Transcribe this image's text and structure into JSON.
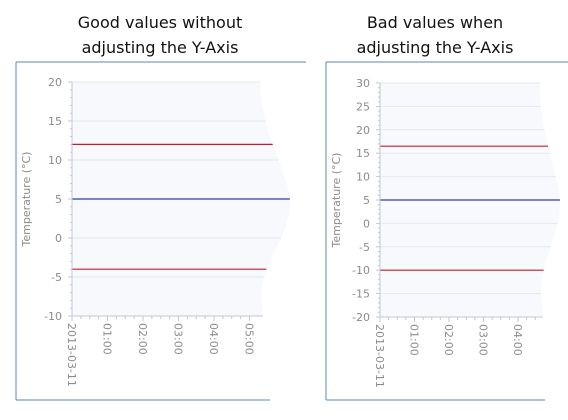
{
  "captions": {
    "left": [
      "Good values without",
      "adjusting the Y-Axis"
    ],
    "right": [
      "Bad values when",
      "adjusting the Y-Axis"
    ]
  },
  "colors": {
    "frame": "#5b87b5",
    "plot_bg": "#f7f9fc",
    "grid": "#e3e9f1",
    "axis_text": "#8c8c8c",
    "limit_line": "#c0202a",
    "value_line": "#2f3ea0"
  },
  "chart_data": [
    {
      "type": "line",
      "title": "Good values without adjusting the Y-Axis",
      "ylabel": "Temperature (°C)",
      "xlabel": "",
      "ylim": [
        -10,
        20
      ],
      "y_ticks": [
        -10,
        -5,
        0,
        5,
        10,
        15,
        20
      ],
      "x_tick_labels": [
        "2013-03-11",
        "01:00",
        "02:00",
        "03:00",
        "04:00",
        "05:00"
      ],
      "series": [
        {
          "role": "upper-limit",
          "color": "#c0202a",
          "y": 12
        },
        {
          "role": "value",
          "color": "#2f3ea0",
          "y": 5
        },
        {
          "role": "lower-limit",
          "color": "#c0202a",
          "y": -4
        }
      ],
      "grid": true
    },
    {
      "type": "line",
      "title": "Bad values when adjusting the Y-Axis",
      "ylabel": "Temperature (°C)",
      "xlabel": "",
      "ylim": [
        -20,
        30
      ],
      "y_ticks": [
        -20,
        -15,
        -10,
        -5,
        0,
        5,
        10,
        15,
        20,
        25,
        30
      ],
      "x_tick_labels": [
        "2013-03-11",
        "01:00",
        "02:00",
        "03:00",
        "04:00"
      ],
      "series": [
        {
          "role": "upper-limit",
          "color": "#c0202a",
          "y": 16.5
        },
        {
          "role": "value",
          "color": "#2f3ea0",
          "y": 5
        },
        {
          "role": "lower-limit",
          "color": "#c0202a",
          "y": -10
        }
      ],
      "grid": true
    }
  ]
}
